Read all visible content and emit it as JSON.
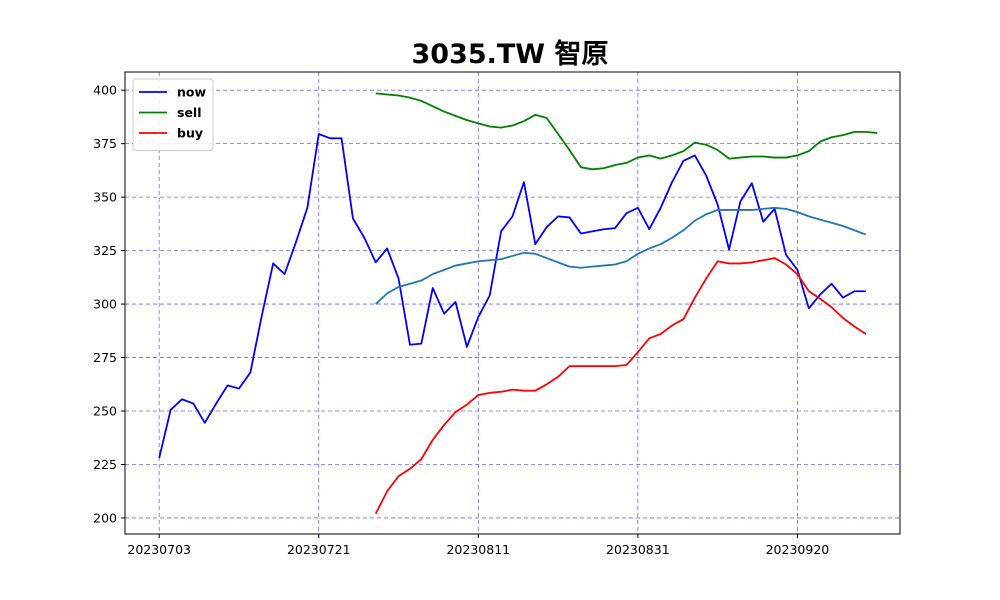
{
  "chart_data": {
    "type": "line",
    "title": "3035.TW 智原",
    "xlabel": "",
    "ylabel": "",
    "x_ticks": [
      {
        "index": 0,
        "label": "20230703"
      },
      {
        "index": 14,
        "label": "20230721"
      },
      {
        "index": 28,
        "label": "20230811"
      },
      {
        "index": 42,
        "label": "20230831"
      },
      {
        "index": 56,
        "label": "20230920"
      }
    ],
    "x_range": [
      -3,
      65
    ],
    "y_ticks": [
      200,
      225,
      250,
      275,
      300,
      325,
      350,
      375,
      400
    ],
    "ylim": [
      192.5,
      408.5
    ],
    "grid": true,
    "legend_position": "top-left",
    "series": [
      {
        "name": "now",
        "color": "#0000ff",
        "start_index": 0,
        "values": [
          228,
          250.5,
          255.5,
          253.5,
          244.5,
          253.5,
          262,
          260.5,
          268,
          294.5,
          319,
          314,
          329,
          345,
          379.5,
          377.5,
          377.5,
          340,
          331,
          319.5,
          326,
          312,
          281,
          281.5,
          307.5,
          295.5,
          301,
          280,
          294,
          304,
          334,
          341,
          357,
          328,
          336,
          341,
          340.5,
          333,
          334,
          335,
          335.5,
          342.5,
          345,
          335,
          345,
          357,
          367,
          369.5,
          360,
          346.5,
          325.5,
          348,
          356.5,
          338.5,
          344.5,
          323,
          316,
          298,
          304.5,
          309.5,
          303,
          306,
          306
        ]
      },
      {
        "name": "sell",
        "color": "#008000",
        "start_index": 19,
        "values": [
          398.5,
          398,
          397.5,
          396.5,
          395,
          392.5,
          390,
          388,
          386,
          384.5,
          383,
          382.5,
          383.5,
          385.5,
          388.5,
          387,
          379.5,
          372,
          364,
          363,
          363.5,
          365,
          366,
          368.5,
          369.5,
          368,
          369.5,
          371.5,
          375.5,
          374.5,
          372,
          368,
          368.5,
          369,
          369,
          368.5,
          368.5,
          369.5,
          371.5,
          376,
          378,
          379,
          380.5,
          380.5,
          380
        ]
      },
      {
        "name": "buy",
        "color": "#ff0000",
        "start_index": 19,
        "values": [
          202,
          212.5,
          219.5,
          223,
          227.5,
          236.5,
          243.5,
          249.5,
          253,
          257.5,
          258.5,
          259,
          260,
          259.5,
          259.5,
          262.5,
          266,
          271,
          271,
          271,
          271,
          271,
          271.5,
          277.5,
          284,
          286,
          290,
          293,
          303,
          312,
          320,
          319,
          319,
          319.5,
          320.5,
          321.5,
          318.5,
          314,
          306,
          302.5,
          298.5,
          293.5,
          289.5,
          286
        ]
      },
      {
        "name": "",
        "color": "#1f77b4",
        "start_index": 19,
        "values": [
          300,
          305,
          308,
          309.5,
          311,
          314,
          316,
          318,
          319,
          320,
          320.5,
          321,
          322.5,
          324,
          323.5,
          321.5,
          319.5,
          317.5,
          317,
          317.5,
          318,
          318.5,
          320,
          323.5,
          326,
          328,
          331,
          334.5,
          339,
          342,
          344,
          344,
          344,
          344,
          344.5,
          345,
          344.5,
          343,
          341,
          339.5,
          338,
          336.5,
          334.5,
          332.5
        ]
      }
    ]
  }
}
